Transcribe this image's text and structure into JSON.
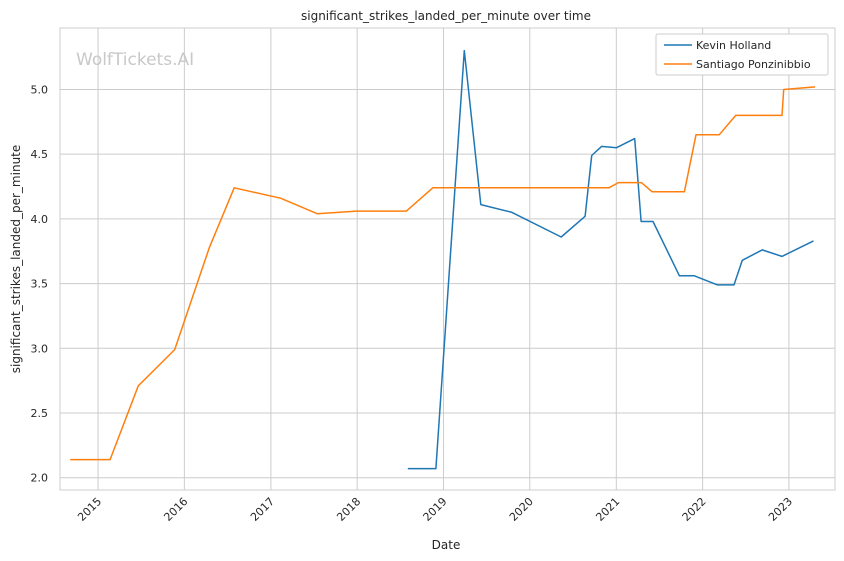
{
  "watermark": "WolfTickets.AI",
  "chart_data": {
    "type": "line",
    "title": "significant_strikes_landed_per_minute over time",
    "xlabel": "Date",
    "ylabel": "significant_strikes_landed_per_minute",
    "xlim": [
      "2014-07-24",
      "2023-07-15"
    ],
    "ylim": [
      1.905,
      5.475
    ],
    "x_ticks": [
      "2015",
      "2016",
      "2017",
      "2018",
      "2019",
      "2020",
      "2021",
      "2022",
      "2023"
    ],
    "y_ticks": [
      "2.0",
      "2.5",
      "3.0",
      "3.5",
      "4.0",
      "4.5",
      "5.0"
    ],
    "grid": true,
    "legend_position": "top-right",
    "series": [
      {
        "name": "Kevin Holland",
        "color": "#1f77b4",
        "points": [
          [
            "2018-08-03",
            2.07
          ],
          [
            "2018-11-30",
            2.07
          ],
          [
            "2019-03-30",
            5.3
          ],
          [
            "2019-06-08",
            4.11
          ],
          [
            "2019-10-18",
            4.05
          ],
          [
            "2020-05-13",
            3.86
          ],
          [
            "2020-08-22",
            4.02
          ],
          [
            "2020-09-19",
            4.49
          ],
          [
            "2020-10-31",
            4.56
          ],
          [
            "2021-01-02",
            4.55
          ],
          [
            "2021-03-20",
            4.62
          ],
          [
            "2021-04-16",
            3.98
          ],
          [
            "2021-06-05",
            3.98
          ],
          [
            "2021-09-25",
            3.56
          ],
          [
            "2021-11-27",
            3.56
          ],
          [
            "2022-03-05",
            3.49
          ],
          [
            "2022-05-14",
            3.49
          ],
          [
            "2022-06-18",
            3.68
          ],
          [
            "2022-09-10",
            3.76
          ],
          [
            "2022-12-03",
            3.71
          ],
          [
            "2023-04-15",
            3.83
          ]
        ]
      },
      {
        "name": "Santiago Ponzinibbio",
        "color": "#ff7f0e",
        "points": [
          [
            "2014-09-05",
            2.14
          ],
          [
            "2015-02-21",
            2.14
          ],
          [
            "2015-06-20",
            2.71
          ],
          [
            "2015-11-21",
            2.99
          ],
          [
            "2016-04-16",
            3.78
          ],
          [
            "2016-07-30",
            4.24
          ],
          [
            "2017-02-11",
            4.16
          ],
          [
            "2017-07-16",
            4.04
          ],
          [
            "2017-12-30",
            4.06
          ],
          [
            "2018-07-28",
            4.06
          ],
          [
            "2018-11-17",
            4.24
          ],
          [
            "2020-12-01",
            4.24
          ],
          [
            "2021-01-10",
            4.28
          ],
          [
            "2021-04-17",
            4.28
          ],
          [
            "2021-06-01",
            4.21
          ],
          [
            "2021-10-16",
            4.21
          ],
          [
            "2021-12-04",
            4.65
          ],
          [
            "2022-03-12",
            4.65
          ],
          [
            "2022-05-21",
            4.8
          ],
          [
            "2022-12-03",
            4.8
          ],
          [
            "2022-12-10",
            5.0
          ],
          [
            "2023-04-22",
            5.02
          ]
        ]
      }
    ]
  }
}
